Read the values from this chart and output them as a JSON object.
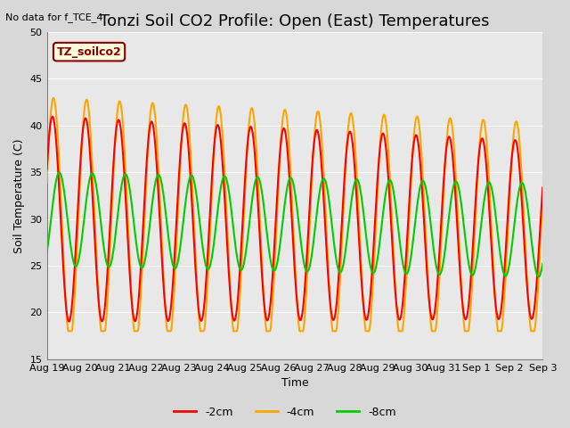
{
  "title": "Tonzi Soil CO2 Profile: Open (East) Temperatures",
  "subtitle": "No data for f_TCE_4",
  "ylabel": "Soil Temperature (C)",
  "xlabel": "Time",
  "ylim": [
    15,
    50
  ],
  "legend_label": "TZ_soilco2",
  "series_labels": [
    "-2cm",
    "-4cm",
    "-8cm"
  ],
  "series_colors": [
    "#ff0000",
    "#ffa500",
    "#00cc00"
  ],
  "x_tick_labels": [
    "Aug 19",
    "Aug 20",
    "Aug 21",
    "Aug 22",
    "Aug 23",
    "Aug 24",
    "Aug 25",
    "Aug 26",
    "Aug 27",
    "Aug 28",
    "Aug 29",
    "Aug 30",
    "Aug 31",
    "Sep 1",
    "Sep 2",
    "Sep 3"
  ],
  "title_fontsize": 13,
  "axis_fontsize": 9,
  "tick_fontsize": 8,
  "legend_fontsize": 9
}
